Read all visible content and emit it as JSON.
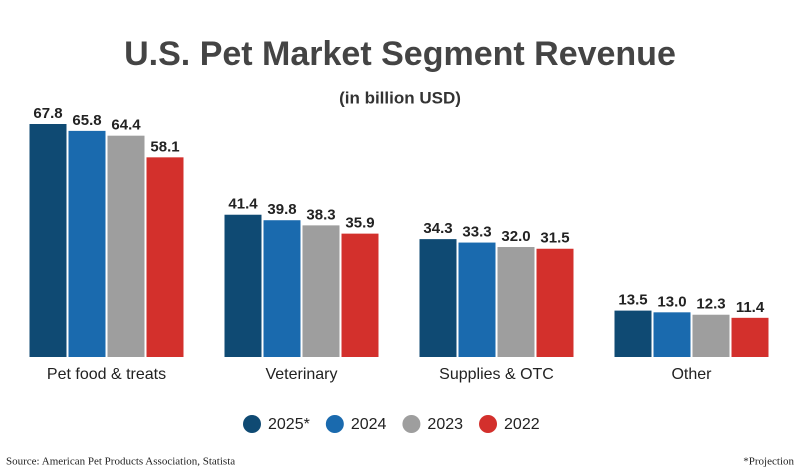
{
  "chart_data": {
    "type": "bar",
    "title": "U.S. Pet Market Segment Revenue",
    "subtitle": "(in billion USD)",
    "categories": [
      "Pet food & treats",
      "Veterinary",
      "Supplies & OTC",
      "Other"
    ],
    "series": [
      {
        "name": "2025*",
        "color": "#0f4a73",
        "values": [
          67.8,
          41.4,
          34.3,
          13.5
        ],
        "value_labels": [
          "67.8",
          "41.4",
          "34.3",
          "13.5"
        ]
      },
      {
        "name": "2024",
        "color": "#1a6aae",
        "values": [
          65.8,
          39.8,
          33.3,
          13.0
        ],
        "value_labels": [
          "65.8",
          "39.8",
          "33.3",
          "13.0"
        ]
      },
      {
        "name": "2023",
        "color": "#9e9e9e",
        "values": [
          64.4,
          38.3,
          32.0,
          12.3
        ],
        "value_labels": [
          "64.4",
          "38.3",
          "32.0",
          "12.3"
        ]
      },
      {
        "name": "2022",
        "color": "#d3302c",
        "values": [
          58.1,
          35.9,
          31.5,
          11.4
        ],
        "value_labels": [
          "58.1",
          "35.9",
          "31.5",
          "11.4"
        ]
      }
    ],
    "source": "Source: American Pet Products Association, Statista",
    "footnote": "*Projection"
  }
}
